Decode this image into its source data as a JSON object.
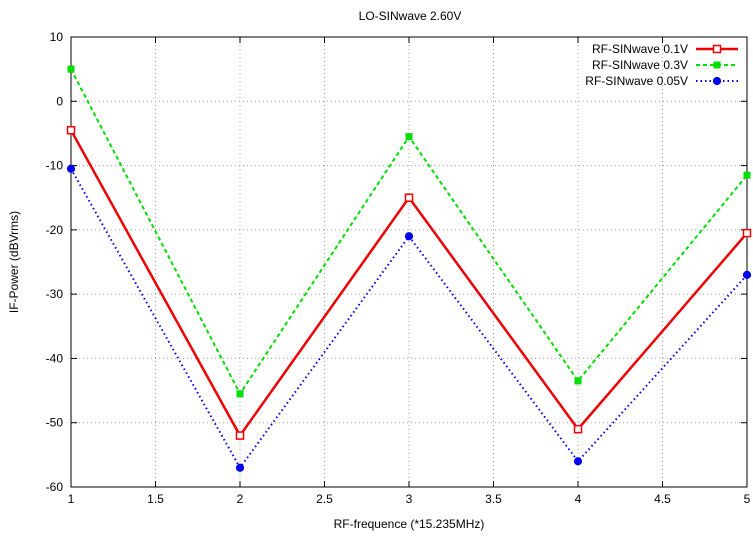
{
  "chart_data": {
    "type": "line",
    "title": "LO-SINwave 2.60V",
    "xlabel": "RF-frequence (*15.235MHz)",
    "ylabel": "IF-Power (dBVrms)",
    "xlim": [
      1,
      5
    ],
    "ylim": [
      -60,
      10
    ],
    "xticks": [
      1,
      1.5,
      2,
      2.5,
      3,
      3.5,
      4,
      4.5,
      5
    ],
    "yticks": [
      -60,
      -50,
      -40,
      -30,
      -20,
      -10,
      0,
      10
    ],
    "grid": true,
    "legend_position": "top-right",
    "x": [
      1,
      2,
      3,
      4,
      5
    ],
    "series": [
      {
        "name": "RF-SINwave 0.1V",
        "color": "#ee0000",
        "style": "solid",
        "marker": "square-open",
        "values": [
          -4.5,
          -52,
          -15,
          -51,
          -20.5
        ]
      },
      {
        "name": "RF-SINwave 0.3V",
        "color": "#00dd00",
        "style": "dashed",
        "marker": "square-filled",
        "values": [
          5,
          -45.5,
          -5.5,
          -43.5,
          -11.5
        ]
      },
      {
        "name": "RF-SINwave 0.05V",
        "color": "#0000ee",
        "style": "dotted",
        "marker": "circle-open",
        "values": [
          -10.5,
          -57,
          -21,
          -56,
          -27
        ]
      }
    ]
  }
}
